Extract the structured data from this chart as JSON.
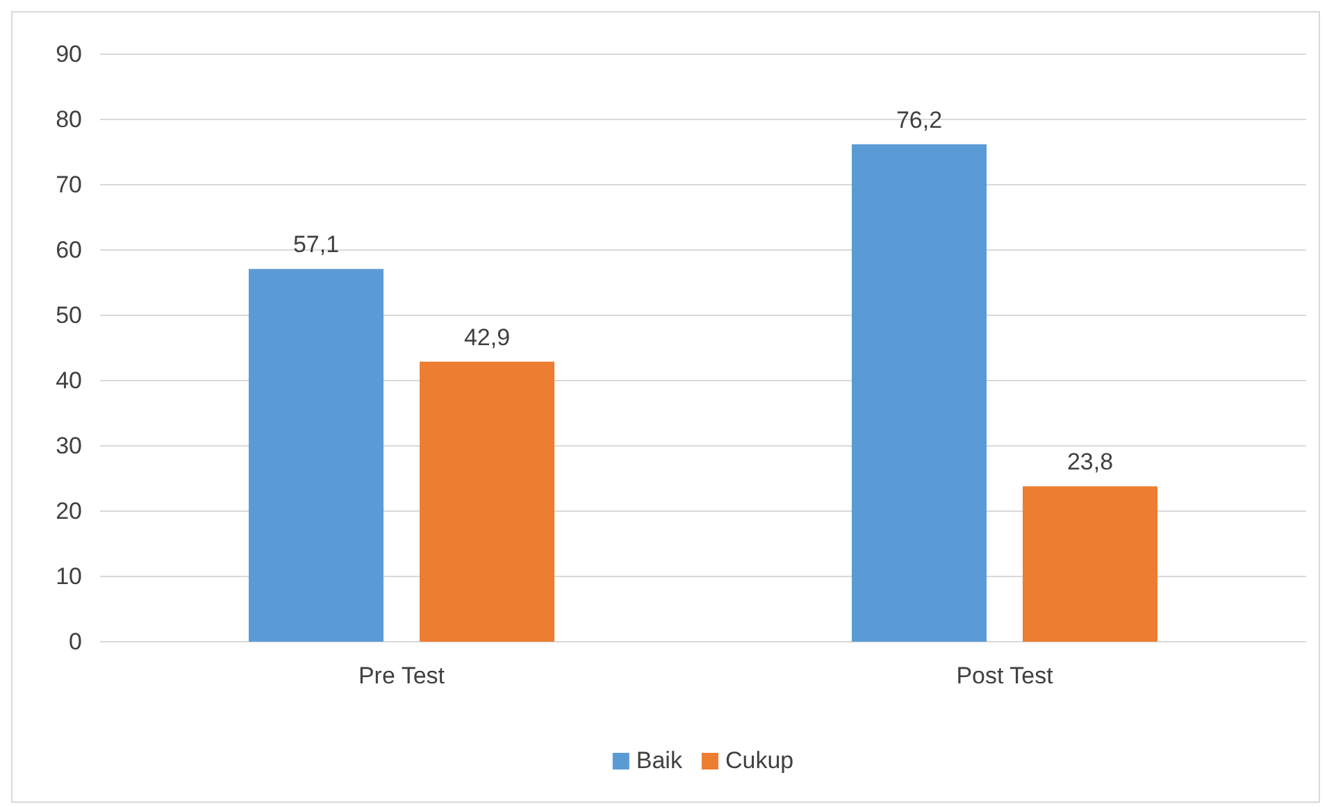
{
  "chart_data": {
    "type": "bar",
    "categories": [
      "Pre Test",
      "Post Test"
    ],
    "series": [
      {
        "name": "Baik",
        "color": "#5b9bd5",
        "values": [
          57.1,
          76.2
        ],
        "value_labels": [
          "57,1",
          "76,2"
        ]
      },
      {
        "name": "Cukup",
        "color": "#ed7d31",
        "values": [
          42.9,
          23.8
        ],
        "value_labels": [
          "42,9",
          "23,8"
        ]
      }
    ],
    "ylim": [
      0,
      90
    ],
    "yticks": [
      0,
      10,
      20,
      30,
      40,
      50,
      60,
      70,
      80,
      90
    ],
    "grid": "y",
    "legend": "bottom"
  }
}
